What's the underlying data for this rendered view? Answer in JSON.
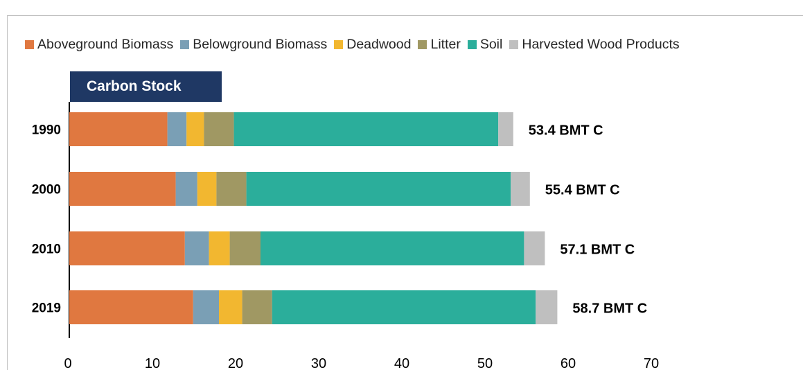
{
  "chart_data": {
    "type": "bar",
    "orientation": "horizontal",
    "stacked": true,
    "title": "Carbon Stock",
    "categories": [
      "1990",
      "2000",
      "2010",
      "2019"
    ],
    "series": [
      {
        "name": "Aboveground Biomass",
        "color": "#e07840",
        "values": [
          11.8,
          12.8,
          13.9,
          14.9
        ]
      },
      {
        "name": "Belowground Biomass",
        "color": "#7a9fb5",
        "values": [
          2.3,
          2.6,
          2.9,
          3.1
        ]
      },
      {
        "name": "Deadwood",
        "color": "#f2b730",
        "values": [
          2.1,
          2.3,
          2.5,
          2.8
        ]
      },
      {
        "name": "Litter",
        "color": "#a09863",
        "values": [
          3.6,
          3.6,
          3.7,
          3.6
        ]
      },
      {
        "name": "Soil",
        "color": "#2bae9b",
        "values": [
          31.8,
          31.8,
          31.7,
          31.7
        ]
      },
      {
        "name": "Harvested Wood Products",
        "color": "#bfbfbf",
        "values": [
          1.8,
          2.3,
          2.5,
          2.6
        ]
      }
    ],
    "total_labels": [
      "53.4 BMT C",
      "55.4 BMT C",
      "57.1 BMT C",
      "58.7 BMT C"
    ],
    "xlim": [
      0,
      70
    ],
    "xticks": [
      0,
      10,
      20,
      30,
      40,
      50,
      60,
      70
    ],
    "grid": false,
    "legend": "top"
  }
}
